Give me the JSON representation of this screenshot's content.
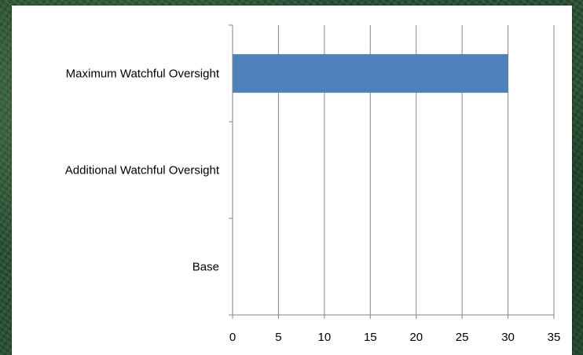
{
  "chart_data": {
    "type": "bar",
    "orientation": "horizontal",
    "categories": [
      "Maximum Watchful Oversight",
      "Additional Watchful Oversight",
      "Base"
    ],
    "values": [
      30,
      0,
      0
    ],
    "xlim": [
      0,
      35
    ],
    "x_ticks": [
      "0",
      "5",
      "10",
      "15",
      "20",
      "25",
      "30",
      "35"
    ],
    "grid": "vertical",
    "bar_color": "#4f81bd",
    "legend": "none"
  }
}
